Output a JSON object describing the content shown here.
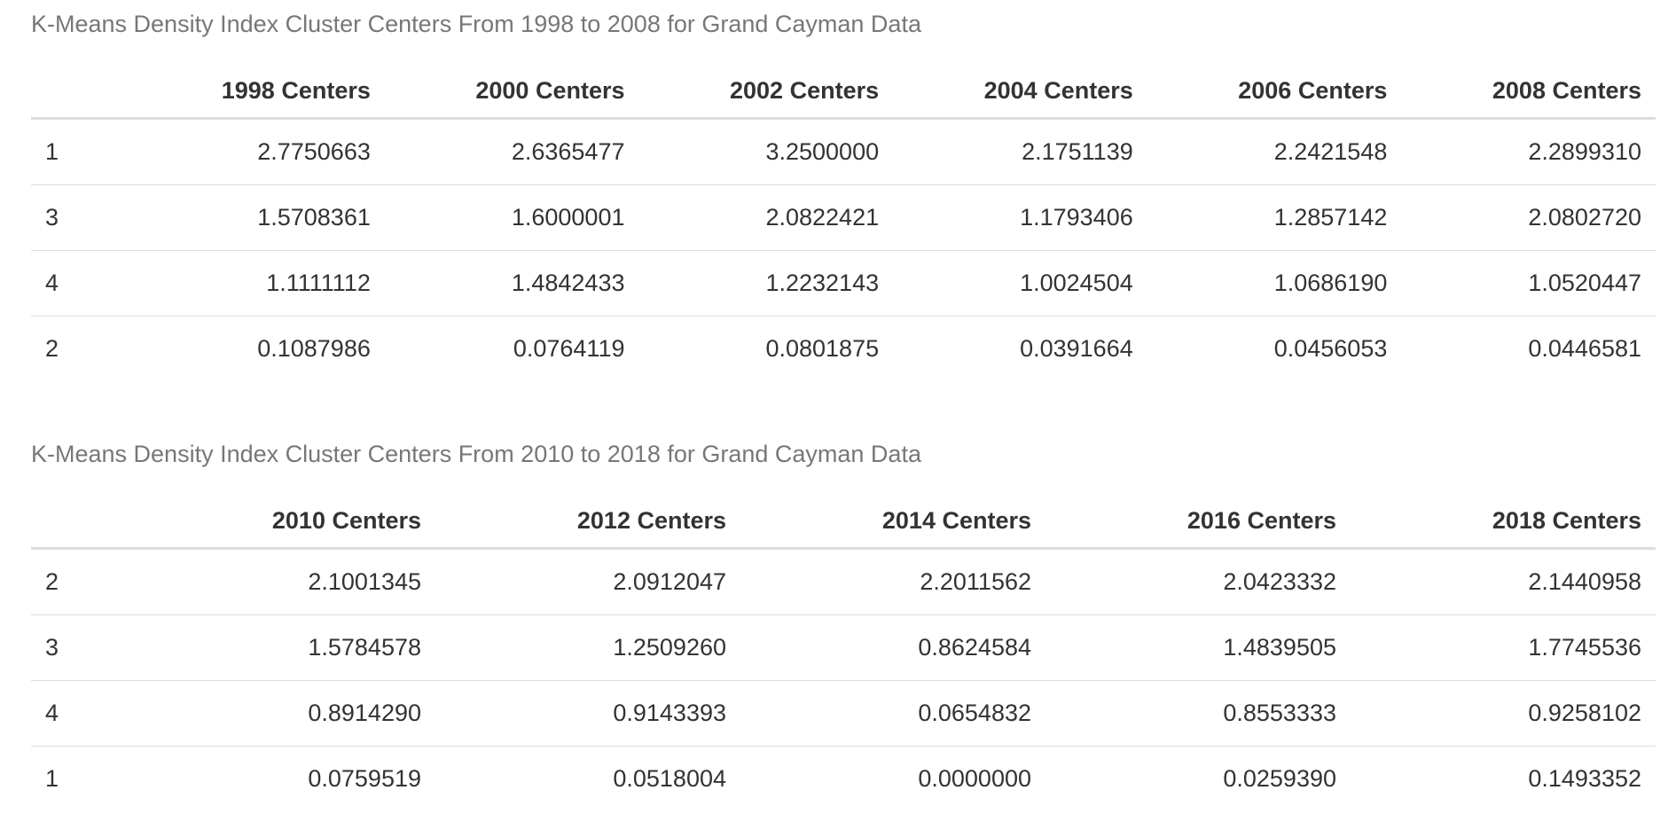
{
  "tables": [
    {
      "caption": "K-Means Density Index Cluster Centers From 1998 to 2008 for Grand Cayman Data",
      "headers": [
        "",
        "1998 Centers",
        "2000 Centers",
        "2002 Centers",
        "2004 Centers",
        "2006 Centers",
        "2008 Centers"
      ],
      "rows": [
        [
          "1",
          "2.7750663",
          "2.6365477",
          "3.2500000",
          "2.1751139",
          "2.2421548",
          "2.2899310"
        ],
        [
          "3",
          "1.5708361",
          "1.6000001",
          "2.0822421",
          "1.1793406",
          "1.2857142",
          "2.0802720"
        ],
        [
          "4",
          "1.1111112",
          "1.4842433",
          "1.2232143",
          "1.0024504",
          "1.0686190",
          "1.0520447"
        ],
        [
          "2",
          "0.1087986",
          "0.0764119",
          "0.0801875",
          "0.0391664",
          "0.0456053",
          "0.0446581"
        ]
      ]
    },
    {
      "caption": "K-Means Density Index Cluster Centers From 2010 to 2018 for Grand Cayman Data",
      "headers": [
        "",
        "2010 Centers",
        "2012 Centers",
        "2014 Centers",
        "2016 Centers",
        "2018 Centers"
      ],
      "rows": [
        [
          "2",
          "2.1001345",
          "2.0912047",
          "2.2011562",
          "2.0423332",
          "2.1440958"
        ],
        [
          "3",
          "1.5784578",
          "1.2509260",
          "0.8624584",
          "1.4839505",
          "1.7745536"
        ],
        [
          "4",
          "0.8914290",
          "0.9143393",
          "0.0654832",
          "0.8553333",
          "0.9258102"
        ],
        [
          "1",
          "0.0759519",
          "0.0518004",
          "0.0000000",
          "0.0259390",
          "0.1493352"
        ]
      ]
    }
  ]
}
